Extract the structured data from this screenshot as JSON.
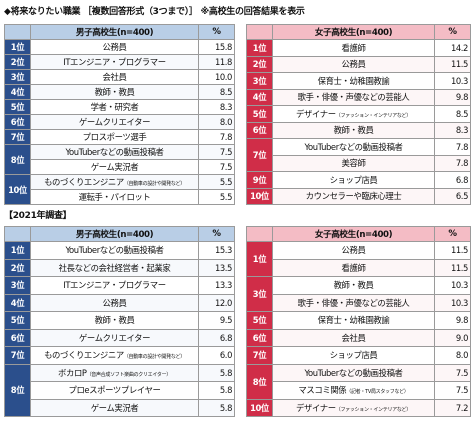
{
  "heading_top": "◆将来なりたい職業 ［複数回答形式（3つまで）］ ※高校生の回答結果を表示",
  "heading_2021": "【2021年調査】",
  "boys_header": "男子高校生(n=400)",
  "girls_header": "女子高校生(n=400)",
  "pct_header": "%",
  "boys_2022": [
    {
      "rank": "1位",
      "name": "公務員",
      "pct": "15.8"
    },
    {
      "rank": "2位",
      "name": "ITエンジニア・プログラマー",
      "pct": "11.8"
    },
    {
      "rank": "3位",
      "name": "会社員",
      "pct": "10.0"
    },
    {
      "rank": "4位",
      "name": "教師・教員",
      "pct": "8.5"
    },
    {
      "rank": "5位",
      "name": "学者・研究者",
      "pct": "8.3"
    },
    {
      "rank": "6位",
      "name": "ゲームクリエイター",
      "pct": "8.0"
    },
    {
      "rank": "7位",
      "name": "プロスポーツ選手",
      "pct": "7.8"
    },
    {
      "rank": "8位",
      "name": "YouTuberなどの動画投稿者",
      "pct": "7.5"
    },
    {
      "rank": "",
      "name": "ゲーム実況者",
      "pct": "7.5"
    },
    {
      "rank": "10位",
      "name": "ものづくりエンジニア",
      "note": "（自動車の設計や開発など）",
      "pct": "5.5"
    },
    {
      "rank": "",
      "name": "運転手・パイロット",
      "pct": "5.5"
    }
  ],
  "girls_2022": [
    {
      "rank": "1位",
      "name": "看護師",
      "pct": "14.2"
    },
    {
      "rank": "2位",
      "name": "公務員",
      "pct": "11.5"
    },
    {
      "rank": "3位",
      "name": "保育士・幼稚園教諭",
      "pct": "10.3"
    },
    {
      "rank": "4位",
      "name": "歌手・俳優・声優などの芸能人",
      "pct": "9.8"
    },
    {
      "rank": "5位",
      "name": "デザイナー",
      "note": "（ファッション・インテリアなど）",
      "pct": "8.5"
    },
    {
      "rank": "6位",
      "name": "教師・教員",
      "pct": "8.3"
    },
    {
      "rank": "7位",
      "name": "YouTuberなどの動画投稿者",
      "pct": "7.8"
    },
    {
      "rank": "",
      "name": "美容師",
      "pct": "7.8"
    },
    {
      "rank": "9位",
      "name": "ショップ店員",
      "pct": "6.8"
    },
    {
      "rank": "10位",
      "name": "カウンセラーや臨床心理士",
      "pct": "6.5"
    }
  ],
  "boys_2021": [
    {
      "rank": "1位",
      "name": "YouTuberなどの動画投稿者",
      "pct": "15.3"
    },
    {
      "rank": "2位",
      "name": "社長などの会社経営者・起業家",
      "pct": "13.5"
    },
    {
      "rank": "3位",
      "name": "ITエンジニア・プログラマー",
      "pct": "13.3"
    },
    {
      "rank": "4位",
      "name": "公務員",
      "pct": "12.0"
    },
    {
      "rank": "5位",
      "name": "教師・教員",
      "pct": "9.5"
    },
    {
      "rank": "6位",
      "name": "ゲームクリエイター",
      "pct": "6.8"
    },
    {
      "rank": "7位",
      "name": "ものづくりエンジニア",
      "note": "（自動車の設計や開発など）",
      "pct": "6.0"
    },
    {
      "rank": "8位",
      "name": "ボカロP",
      "note": "（音声合成ソフト楽曲のクリエイター）",
      "pct": "5.8"
    },
    {
      "rank": "",
      "name": "プロeスポーツプレイヤー",
      "pct": "5.8"
    },
    {
      "rank": "",
      "name": "ゲーム実況者",
      "pct": "5.8"
    }
  ],
  "girls_2021": [
    {
      "rank": "1位",
      "name": "公務員",
      "pct": "11.5"
    },
    {
      "rank": "",
      "name": "看護師",
      "pct": "11.5"
    },
    {
      "rank": "3位",
      "name": "教師・教員",
      "pct": "10.3"
    },
    {
      "rank": "",
      "name": "歌手・俳優・声優などの芸能人",
      "pct": "10.3"
    },
    {
      "rank": "5位",
      "name": "保育士・幼稚園教諭",
      "pct": "9.8"
    },
    {
      "rank": "6位",
      "name": "会社員",
      "pct": "9.0"
    },
    {
      "rank": "7位",
      "name": "ショップ店員",
      "pct": "8.0"
    },
    {
      "rank": "8位",
      "name": "YouTuberなどの動画投稿者",
      "pct": "7.5"
    },
    {
      "rank": "",
      "name": "マスコミ関係",
      "note": "（記者・TV局スタッフなど）",
      "pct": "7.5"
    },
    {
      "rank": "10位",
      "name": "デザイナー",
      "note": "（ファッション・インテリアなど）",
      "pct": "7.2"
    }
  ]
}
